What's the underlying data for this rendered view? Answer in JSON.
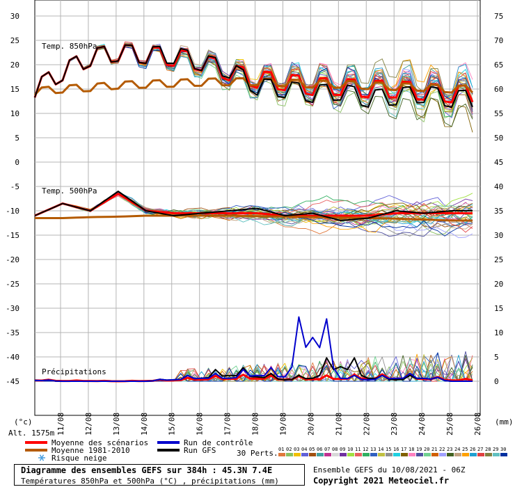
{
  "chart_data": [
    {
      "type": "line",
      "title": "Temp. 850hPa",
      "unit": "°C",
      "ylim_left": [
        0,
        30
      ],
      "ylim_right": [
        45,
        75
      ],
      "left_ticks": [
        "0",
        "5",
        "10",
        "15",
        "20",
        "25",
        "30"
      ],
      "right_ticks": [
        "45",
        "50",
        "55",
        "60",
        "65",
        "70",
        "75"
      ],
      "x": [
        "11/08",
        "12/08",
        "13/08",
        "14/08",
        "15/08",
        "16/08",
        "17/08",
        "18/08",
        "19/08",
        "20/08",
        "21/08",
        "22/08",
        "23/08",
        "24/08",
        "25/08",
        "26/08"
      ],
      "series": [
        {
          "name": "Moyenne des scénarios",
          "color": "#ff0000",
          "values": [
            15,
            18.5,
            21.5,
            22.5,
            22,
            21.5,
            20.5,
            18.5,
            17,
            16.5,
            15.5,
            15.5,
            15,
            15,
            14.5,
            14
          ]
        },
        {
          "name": "Moyenne 1981-2010",
          "color": "#b45a00",
          "values": [
            14.5,
            15,
            15.3,
            15.8,
            16,
            16.2,
            16.4,
            16.5,
            16.5,
            16.3,
            16,
            16,
            15.7,
            15.5,
            15.3,
            15
          ]
        },
        {
          "name": "Run GFS",
          "color": "#000000",
          "values": [
            15,
            18.5,
            21.5,
            22.5,
            22,
            22,
            20.5,
            19,
            15.5,
            15,
            14,
            14.5,
            13,
            13.5,
            14,
            13
          ]
        }
      ]
    },
    {
      "type": "line",
      "title": "Temp. 500hPa",
      "unit": "°C",
      "ylim_left": [
        -50,
        0
      ],
      "left_ticks": [
        "0",
        "-5",
        "-10",
        "-15",
        "-20",
        "-25",
        "-30",
        "-35",
        "-40",
        "-45"
      ],
      "right_ticks": [
        "45",
        "40",
        "35",
        "30",
        "25",
        "20",
        "15",
        "10",
        "5",
        "0"
      ],
      "x": [
        "11/08",
        "12/08",
        "13/08",
        "14/08",
        "15/08",
        "16/08",
        "17/08",
        "18/08",
        "19/08",
        "20/08",
        "21/08",
        "22/08",
        "23/08",
        "24/08",
        "25/08",
        "26/08"
      ],
      "series": [
        {
          "name": "Moyenne des scénarios",
          "color": "#ff0000",
          "values": [
            -11,
            -8.5,
            -10,
            -6.5,
            -10,
            -10.5,
            -10.5,
            -10.5,
            -10.5,
            -11,
            -11,
            -11,
            -11,
            -10.5,
            -10.5,
            -10.5
          ]
        },
        {
          "name": "Moyenne 1981-2010",
          "color": "#b45a00",
          "values": [
            -11.5,
            -11.5,
            -11.3,
            -11.2,
            -11,
            -11,
            -11,
            -11,
            -11.1,
            -11.2,
            -11.3,
            -11.4,
            -11.5,
            -11.6,
            -11.8,
            -12
          ]
        },
        {
          "name": "Run GFS",
          "color": "#000000",
          "values": [
            -11,
            -8.5,
            -10,
            -6,
            -10,
            -11,
            -10.5,
            -10,
            -9.5,
            -11,
            -10.5,
            -12,
            -11.5,
            -10,
            -10.5,
            -10
          ]
        }
      ]
    },
    {
      "type": "line",
      "title": "Précipitations",
      "unit": "mm",
      "ylim_right": [
        0,
        15
      ],
      "right_ticks": [
        "0",
        "5",
        "10",
        "15"
      ],
      "x": [
        "11/08",
        "12/08",
        "13/08",
        "14/08",
        "15/08",
        "16/08",
        "17/08",
        "18/08",
        "19/08",
        "20/08",
        "21/08",
        "22/08",
        "23/08",
        "24/08",
        "25/08",
        "26/08"
      ],
      "series": [
        {
          "name": "Moyenne des scénarios",
          "color": "#ff0000",
          "values": [
            0.3,
            0.1,
            0.1,
            0,
            0.1,
            0.3,
            0.6,
            0.8,
            0.9,
            0.6,
            0.7,
            0.8,
            0.9,
            0.9,
            0.8,
            0.3
          ]
        },
        {
          "name": "Run GFS",
          "color": "#000000",
          "values": [
            0.3,
            0,
            0,
            0,
            0,
            0.5,
            1,
            2,
            1.5,
            0.5,
            1,
            5,
            1,
            0.5,
            1,
            0
          ]
        },
        {
          "name": "Run de contrôle",
          "color": "#0000cc",
          "values": [
            0.3,
            0,
            0,
            0,
            0,
            0.5,
            1,
            1,
            2,
            1.5,
            15,
            1,
            0.5,
            1,
            1,
            0
          ]
        }
      ]
    }
  ],
  "axes": {
    "left_unit": "(°c)",
    "right_unit": "(mm)",
    "altitude": "Alt. 1575m"
  },
  "legend": {
    "mean_scenarios": "Moyenne des scénarios",
    "mean_climo": "Moyenne 1981-2010",
    "snow_risk": "Risque neige",
    "control_run": "Run de contrôle",
    "gfs_run": "Run GFS",
    "perts_label": "30 Perts.",
    "pert_numbers": [
      "01",
      "02",
      "03",
      "04",
      "05",
      "06",
      "07",
      "08",
      "09",
      "10",
      "11",
      "12",
      "13",
      "14",
      "15",
      "16",
      "17",
      "18",
      "19",
      "20",
      "21",
      "22",
      "23",
      "24",
      "25",
      "26",
      "27",
      "28",
      "29",
      "30"
    ],
    "pert_colors": [
      "#e0783c",
      "#88c060",
      "#f0c000",
      "#6060d8",
      "#a05010",
      "#40a0a0",
      "#c03090",
      "#d8d8d8",
      "#7030a0",
      "#a0e040",
      "#e86060",
      "#30b060",
      "#3060c0",
      "#c0c040",
      "#909090",
      "#20d0e0",
      "#806000",
      "#ff80c0",
      "#5050a0",
      "#70d090",
      "#d06000",
      "#a0a0ff",
      "#406020",
      "#c0a080",
      "#ffa000",
      "#20a0d0",
      "#e04040",
      "#808040",
      "#60c0c0",
      "#0030a0"
    ]
  },
  "footer": {
    "title": "Diagramme des ensembles GEFS sur 384h : 45.3N 7.4E",
    "subtitle": "Températures 850hPa et 500hPa (°C) , précipitations (mm)",
    "run_info": "Ensemble GEFS du 10/08/2021 - 06Z",
    "copyright": "Copyright 2021 Meteociel.fr"
  },
  "colors": {
    "mean": "#ff0000",
    "climo": "#b45a00",
    "control": "#0000cc",
    "gfs": "#000000",
    "grid": "#b4b4b4"
  }
}
